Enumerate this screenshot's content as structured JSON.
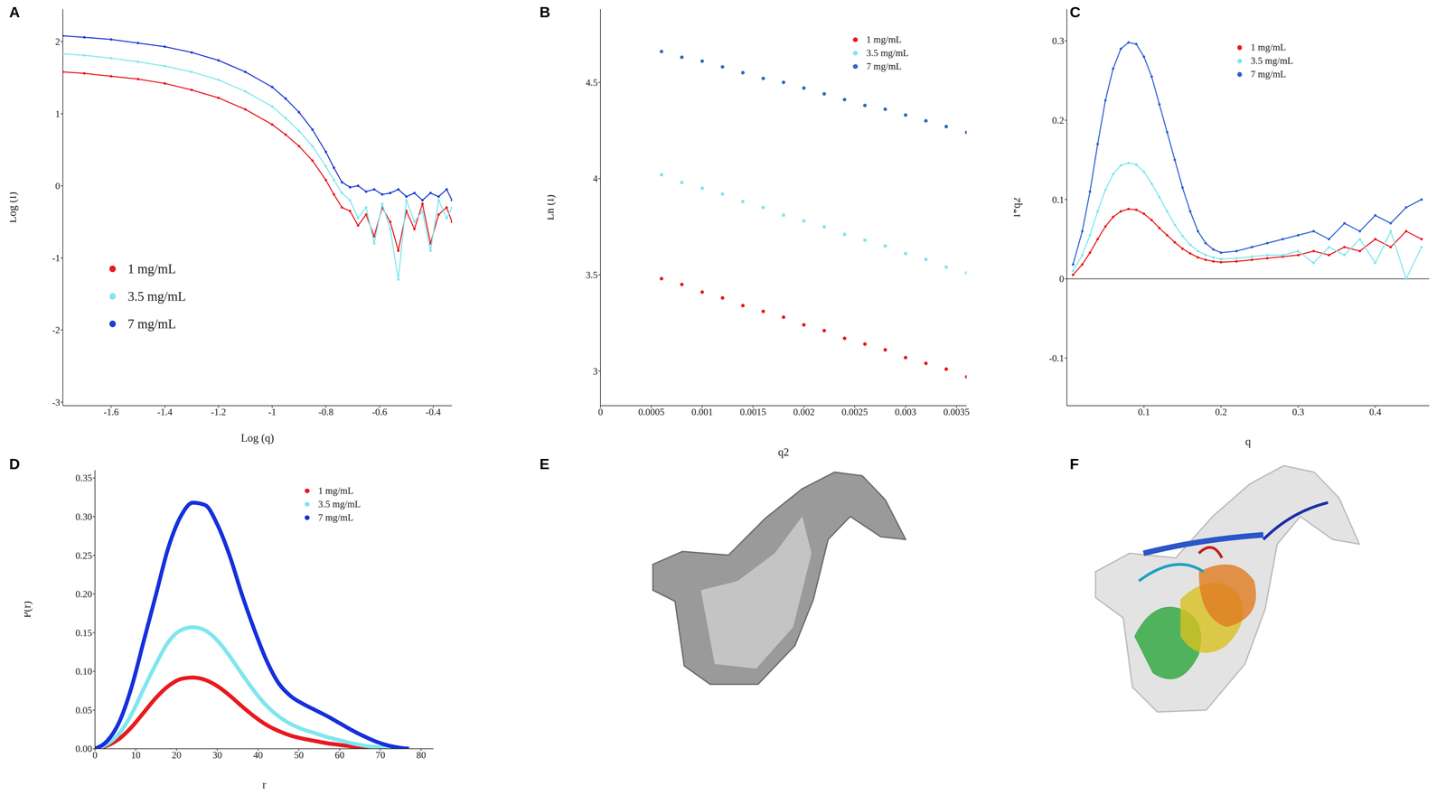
{
  "chart_data": [
    {
      "type": "scatter",
      "title": "A",
      "x_label": "Log (q)",
      "y_label": "Log (I)",
      "marker": "circle",
      "line_style": "solid",
      "legend": "lower left",
      "xlim": [
        -1.78,
        -0.33
      ],
      "xticks": [
        -1.6,
        -1.4,
        -1.2,
        -1,
        -0.8,
        -0.6,
        -0.4
      ],
      "ylim": [
        -3.05,
        2.45
      ],
      "yticks": [
        -3,
        -2,
        -1,
        0,
        1,
        2
      ],
      "x": [
        -1.78,
        -1.7,
        -1.6,
        -1.5,
        -1.4,
        -1.3,
        -1.2,
        -1.1,
        -1.0,
        -0.95,
        -0.9,
        -0.85,
        -0.8,
        -0.77,
        -0.74,
        -0.71,
        -0.68,
        -0.65,
        -0.62,
        -0.59,
        -0.56,
        -0.53,
        -0.5,
        -0.47,
        -0.44,
        -0.41,
        -0.38,
        -0.35,
        -0.33
      ],
      "series": [
        {
          "name": "1 mg/mL",
          "color": "#e8191e",
          "values": [
            1.58,
            1.56,
            1.52,
            1.48,
            1.42,
            1.33,
            1.22,
            1.06,
            0.85,
            0.71,
            0.55,
            0.35,
            0.08,
            -0.12,
            -0.3,
            -0.35,
            -0.55,
            -0.4,
            -0.7,
            -0.3,
            -0.5,
            -0.9,
            -0.35,
            -0.6,
            -0.25,
            -0.8,
            -0.4,
            -0.3,
            -0.5
          ]
        },
        {
          "name": "3.5 mg/mL",
          "color": "#80e6ee",
          "values": [
            1.83,
            1.81,
            1.77,
            1.72,
            1.66,
            1.58,
            1.47,
            1.31,
            1.1,
            0.94,
            0.76,
            0.55,
            0.27,
            0.08,
            -0.1,
            -0.2,
            -0.45,
            -0.3,
            -0.8,
            -0.25,
            -0.6,
            -1.3,
            -0.2,
            -0.5,
            -0.35,
            -0.9,
            -0.2,
            -0.45,
            -0.3
          ]
        },
        {
          "name": "7 mg/mL",
          "color": "#1f3fd0",
          "values": [
            2.08,
            2.06,
            2.03,
            1.98,
            1.93,
            1.85,
            1.74,
            1.58,
            1.37,
            1.21,
            1.02,
            0.78,
            0.47,
            0.25,
            0.05,
            -0.02,
            0.0,
            -0.08,
            -0.05,
            -0.12,
            -0.1,
            -0.05,
            -0.15,
            -0.1,
            -0.2,
            -0.1,
            -0.15,
            -0.05,
            -0.2
          ]
        }
      ]
    },
    {
      "type": "scatter",
      "title": "B",
      "x_label": "q2",
      "y_label": "Ln (I)",
      "marker": "circle",
      "legend": "upper right",
      "xlim": [
        0,
        0.0036
      ],
      "xticks": [
        0,
        0.0005,
        0.001,
        0.0015,
        0.002,
        0.0025,
        0.003,
        0.0035
      ],
      "ylim": [
        2.82,
        4.88
      ],
      "yticks": [
        3,
        3.5,
        4,
        4.5
      ],
      "x": [
        0.0006,
        0.0008,
        0.001,
        0.0012,
        0.0014,
        0.0016,
        0.0018,
        0.002,
        0.0022,
        0.0024,
        0.0026,
        0.0028,
        0.003,
        0.0032,
        0.0034,
        0.0036
      ],
      "series": [
        {
          "name": "1 mg/mL",
          "color": "#e8191e",
          "values": [
            3.48,
            3.45,
            3.41,
            3.38,
            3.34,
            3.31,
            3.28,
            3.24,
            3.21,
            3.17,
            3.14,
            3.11,
            3.07,
            3.04,
            3.01,
            2.97
          ]
        },
        {
          "name": "3.5 mg/mL",
          "color": "#80e6ee",
          "values": [
            4.02,
            3.98,
            3.95,
            3.92,
            3.88,
            3.85,
            3.81,
            3.78,
            3.75,
            3.71,
            3.68,
            3.65,
            3.61,
            3.58,
            3.54,
            3.51
          ]
        },
        {
          "name": "7 mg/mL",
          "color": "#3368bf",
          "values": [
            4.66,
            4.63,
            4.61,
            4.58,
            4.55,
            4.52,
            4.5,
            4.47,
            4.44,
            4.41,
            4.38,
            4.36,
            4.33,
            4.3,
            4.27,
            4.24
          ]
        }
      ]
    },
    {
      "type": "scatter",
      "title": "C",
      "x_label": "q",
      "y_label": "I*q2",
      "marker": "circle",
      "line_style": "solid",
      "legend": "upper right",
      "xlim": [
        0,
        0.47
      ],
      "xticks": [
        0.1,
        0.2,
        0.3,
        0.4
      ],
      "ylim": [
        -0.16,
        0.34
      ],
      "yticks": [
        -0.1,
        0,
        0.1,
        0.2,
        0.3
      ],
      "hline": 0,
      "x": [
        0.008,
        0.02,
        0.03,
        0.04,
        0.05,
        0.06,
        0.07,
        0.08,
        0.09,
        0.1,
        0.11,
        0.12,
        0.13,
        0.14,
        0.15,
        0.16,
        0.17,
        0.18,
        0.19,
        0.2,
        0.22,
        0.24,
        0.26,
        0.28,
        0.3,
        0.32,
        0.34,
        0.36,
        0.38,
        0.4,
        0.42,
        0.44,
        0.46
      ],
      "series": [
        {
          "name": "1 mg/mL",
          "color": "#e8191e",
          "values": [
            0.005,
            0.018,
            0.033,
            0.05,
            0.066,
            0.078,
            0.085,
            0.088,
            0.087,
            0.082,
            0.074,
            0.064,
            0.055,
            0.046,
            0.038,
            0.032,
            0.027,
            0.024,
            0.022,
            0.021,
            0.022,
            0.024,
            0.026,
            0.028,
            0.03,
            0.035,
            0.03,
            0.04,
            0.035,
            0.05,
            0.04,
            0.06,
            0.05
          ]
        },
        {
          "name": "3.5 mg/mL",
          "color": "#80e6ee",
          "values": [
            0.01,
            0.03,
            0.055,
            0.085,
            0.112,
            0.132,
            0.143,
            0.146,
            0.144,
            0.135,
            0.12,
            0.103,
            0.085,
            0.068,
            0.054,
            0.043,
            0.035,
            0.03,
            0.027,
            0.025,
            0.026,
            0.028,
            0.03,
            0.03,
            0.035,
            0.02,
            0.04,
            0.03,
            0.05,
            0.02,
            0.06,
            0.0,
            0.04
          ]
        },
        {
          "name": "7 mg/mL",
          "color": "#2f5fcf",
          "values": [
            0.018,
            0.06,
            0.11,
            0.17,
            0.225,
            0.265,
            0.29,
            0.298,
            0.296,
            0.28,
            0.255,
            0.22,
            0.185,
            0.15,
            0.115,
            0.085,
            0.06,
            0.045,
            0.037,
            0.033,
            0.035,
            0.04,
            0.045,
            0.05,
            0.055,
            0.06,
            0.05,
            0.07,
            0.06,
            0.08,
            0.07,
            0.09,
            0.1
          ]
        }
      ]
    },
    {
      "type": "line",
      "title": "D",
      "x_label": "r",
      "y_label": "P(r)",
      "marker": "none",
      "line_style": "solid",
      "legend": "upper right",
      "xlim": [
        0,
        83
      ],
      "xticks": [
        0,
        10,
        20,
        30,
        40,
        50,
        60,
        70,
        80
      ],
      "ylim": [
        0,
        0.36
      ],
      "yticks": [
        {
          "value": 0,
          "label": "0.00"
        },
        0.05,
        {
          "value": 0.1,
          "label": "0.10"
        },
        0.15,
        {
          "value": 0.2,
          "label": "0.20"
        },
        0.25,
        {
          "value": 0.3,
          "label": "0.30"
        },
        0.35
      ],
      "x": [
        0,
        3,
        6,
        9,
        12,
        15,
        18,
        21,
        24,
        27,
        30,
        33,
        36,
        39,
        42,
        45,
        48,
        51,
        54,
        57,
        60,
        63,
        66,
        69,
        72,
        75,
        77
      ],
      "series": [
        {
          "name": "1 mg/mL",
          "color": "#e8191e",
          "values": [
            0,
            0.004,
            0.013,
            0.028,
            0.047,
            0.066,
            0.081,
            0.09,
            0.092,
            0.089,
            0.081,
            0.069,
            0.055,
            0.042,
            0.031,
            0.023,
            0.017,
            0.013,
            0.01,
            0.007,
            0.005,
            0.003,
            0.002,
            0.001,
            0,
            0,
            0
          ]
        },
        {
          "name": "3.5 mg/mL",
          "color": "#80e6ee",
          "values": [
            0,
            0.006,
            0.02,
            0.045,
            0.078,
            0.11,
            0.138,
            0.153,
            0.157,
            0.153,
            0.14,
            0.12,
            0.097,
            0.075,
            0.056,
            0.042,
            0.032,
            0.025,
            0.02,
            0.015,
            0.011,
            0.007,
            0.004,
            0.002,
            0.001,
            0,
            0
          ]
        },
        {
          "name": "7 mg/mL",
          "color": "#1530dc",
          "values": [
            0,
            0.01,
            0.035,
            0.08,
            0.14,
            0.2,
            0.26,
            0.3,
            0.318,
            0.315,
            0.29,
            0.25,
            0.2,
            0.155,
            0.115,
            0.085,
            0.068,
            0.058,
            0.05,
            0.042,
            0.033,
            0.024,
            0.016,
            0.009,
            0.004,
            0.001,
            0
          ]
        }
      ]
    }
  ],
  "images": [
    {
      "label": "E"
    },
    {
      "label": "F"
    }
  ]
}
